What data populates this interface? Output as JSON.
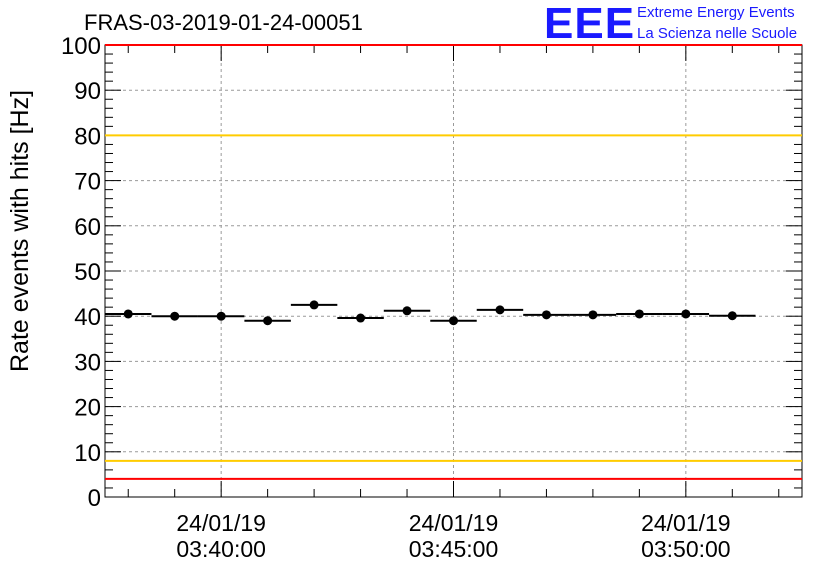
{
  "title": "FRAS-03-2019-01-24-00051",
  "logo": {
    "mark": "EEE",
    "line1": "Extreme Energy Events",
    "line2": "La Scienza nelle Scuole",
    "color": "#1a1aff"
  },
  "chart_data": {
    "type": "scatter",
    "title": "FRAS-03-2019-01-24-00051",
    "xlabel": "",
    "ylabel": "Rate events with hits [Hz]",
    "ylim": [
      0,
      100
    ],
    "yticks": [
      "0",
      "10",
      "20",
      "30",
      "40",
      "50",
      "60",
      "70",
      "80",
      "90",
      "100"
    ],
    "xlim_minutes": [
      37.5,
      52.5
    ],
    "xticks": [
      {
        "t": 40,
        "date": "24/01/19",
        "time": "03:40:00"
      },
      {
        "t": 45,
        "date": "24/01/19",
        "time": "03:45:00"
      },
      {
        "t": 50,
        "date": "24/01/19",
        "time": "03:50:00"
      }
    ],
    "x_unit": "minutes after 03:00:00 on 24/01/19",
    "bin_width_minutes": 1,
    "series": [
      {
        "x": [
          38,
          39,
          40,
          41,
          42,
          43,
          44,
          45,
          46,
          47,
          48,
          49,
          50,
          51
        ],
        "y": [
          40.5,
          40.0,
          40.0,
          39.0,
          42.5,
          39.6,
          41.2,
          39.0,
          41.4,
          40.3,
          40.3,
          40.5,
          40.5,
          40.1
        ],
        "color": "#000000"
      }
    ],
    "reference_lines": [
      {
        "y": 100,
        "color": "#ff0000"
      },
      {
        "y": 80,
        "color": "#ffcc00"
      },
      {
        "y": 8,
        "color": "#ffcc00"
      },
      {
        "y": 4,
        "color": "#ff0000"
      }
    ],
    "grid": true
  }
}
